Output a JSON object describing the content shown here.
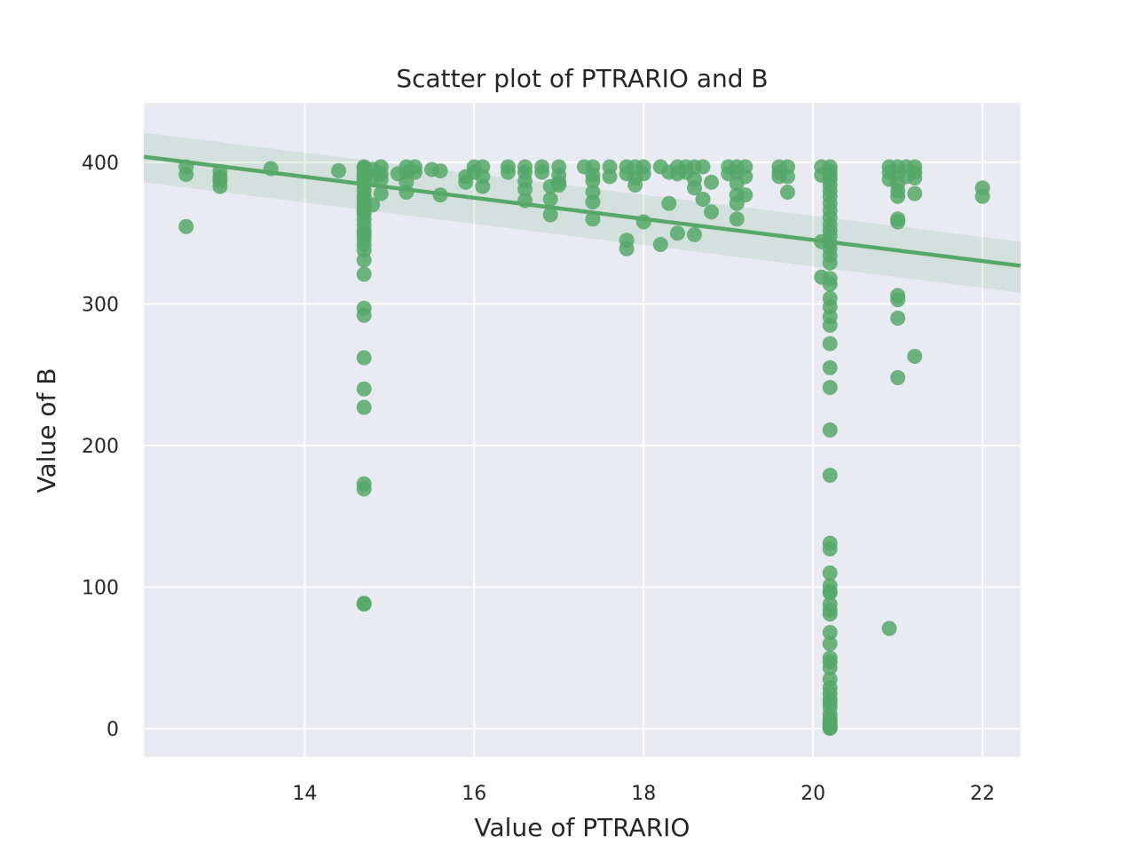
{
  "chart_data": {
    "type": "scatter",
    "title": "Scatter plot of PTRARIO and B",
    "xlabel": "Value of PTRARIO",
    "ylabel": "Value of B",
    "xlim": [
      12.1,
      22.45
    ],
    "ylim": [
      -20,
      442
    ],
    "xticks": [
      14,
      16,
      18,
      20,
      22
    ],
    "yticks": [
      0,
      100,
      200,
      300,
      400
    ],
    "grid": true,
    "background_color": "#eaeaf2",
    "point_color": "#55a868",
    "series": [
      {
        "x": [
          12.6,
          12.6,
          12.6,
          13.0,
          13.0,
          13.0,
          13.0,
          13.6,
          14.4,
          14.7,
          14.7,
          14.7,
          14.7,
          14.7,
          14.7,
          14.7,
          14.7,
          14.7,
          14.7,
          14.7,
          14.7,
          14.7,
          14.7,
          14.7,
          14.7,
          14.7,
          14.7,
          14.7,
          14.7,
          14.7,
          14.7,
          14.7,
          14.7,
          14.7,
          14.7,
          14.7,
          14.7,
          14.7,
          14.7,
          14.7,
          14.7,
          14.7,
          14.8,
          14.8,
          14.8,
          14.9,
          14.9,
          14.9,
          14.9,
          15.1,
          15.2,
          15.2,
          15.2,
          15.2,
          15.3,
          15.3,
          15.5,
          15.6,
          15.6,
          15.9,
          15.9,
          16.0,
          16.0,
          16.1,
          16.1,
          16.1,
          16.4,
          16.4,
          16.6,
          16.6,
          16.6,
          16.6,
          16.6,
          16.8,
          16.8,
          16.9,
          16.9,
          16.9,
          17.0,
          17.0,
          17.0,
          17.0,
          17.3,
          17.4,
          17.4,
          17.4,
          17.4,
          17.4,
          17.4,
          17.6,
          17.6,
          17.8,
          17.8,
          17.8,
          17.8,
          17.9,
          17.9,
          17.9,
          18.0,
          18.0,
          18.0,
          18.2,
          18.2,
          18.3,
          18.3,
          18.4,
          18.4,
          18.4,
          18.5,
          18.5,
          18.6,
          18.6,
          18.6,
          18.6,
          18.7,
          18.7,
          18.8,
          18.8,
          19.0,
          19.0,
          19.1,
          19.1,
          19.1,
          19.1,
          19.1,
          19.1,
          19.2,
          19.2,
          19.2,
          19.6,
          19.6,
          19.6,
          19.7,
          19.7,
          19.7,
          20.1,
          20.1,
          20.1,
          20.1,
          20.2,
          20.2,
          20.2,
          20.2,
          20.2,
          20.2,
          20.2,
          20.2,
          20.2,
          20.2,
          20.2,
          20.2,
          20.2,
          20.2,
          20.2,
          20.2,
          20.2,
          20.2,
          20.2,
          20.2,
          20.2,
          20.2,
          20.2,
          20.2,
          20.2,
          20.2,
          20.2,
          20.2,
          20.2,
          20.2,
          20.2,
          20.2,
          20.2,
          20.2,
          20.2,
          20.2,
          20.2,
          20.2,
          20.2,
          20.2,
          20.2,
          20.2,
          20.2,
          20.2,
          20.2,
          20.2,
          20.2,
          20.2,
          20.2,
          20.2,
          20.2,
          20.2,
          20.2,
          20.2,
          20.2,
          20.2,
          20.9,
          20.9,
          20.9,
          20.9,
          21.0,
          21.0,
          21.0,
          21.0,
          21.0,
          21.0,
          21.0,
          21.0,
          21.0,
          21.0,
          21.0,
          21.1,
          21.1,
          21.2,
          21.2,
          21.2,
          21.2,
          21.2,
          22.0,
          22.0
        ],
        "y": [
          396.9,
          391.5,
          354.7,
          393.5,
          389.6,
          386.9,
          383.0,
          395.6,
          394.1,
          396.9,
          393.0,
          390.6,
          388.0,
          384.0,
          374.0,
          371.0,
          368.0,
          364.0,
          360.0,
          356.0,
          352.0,
          349.0,
          346.0,
          342.0,
          338.0,
          331.0,
          321.0,
          297.0,
          292.0,
          262.0,
          240.0,
          227.0,
          172.9,
          169.3,
          88.6,
          88.0,
          396.0,
          390.0,
          385.0,
          380.0,
          376.0,
          366.0,
          395.0,
          390.0,
          370.0,
          396.9,
          392.0,
          388.0,
          378.0,
          392.0,
          396.9,
          393.0,
          386.0,
          379.0,
          396.9,
          393.0,
          395.0,
          394.0,
          377.0,
          390.0,
          386.0,
          396.9,
          393.0,
          396.9,
          390.0,
          383.0,
          396.9,
          393.0,
          396.9,
          393.0,
          387.0,
          381.0,
          373.0,
          396.9,
          393.0,
          383.0,
          374.0,
          363.0,
          396.9,
          391.0,
          386.0,
          384.0,
          396.9,
          396.9,
          391.0,
          387.0,
          379.0,
          372.0,
          360.0,
          396.9,
          390.0,
          396.9,
          392.0,
          345.0,
          339.0,
          396.9,
          389.0,
          384.0,
          396.9,
          392.0,
          358.0,
          396.9,
          342.0,
          393.0,
          371.0,
          396.9,
          392.0,
          350.0,
          396.9,
          393.0,
          396.9,
          388.0,
          382.0,
          349.0,
          396.9,
          374.0,
          386.0,
          365.0,
          396.9,
          392.0,
          396.9,
          393.0,
          385.0,
          377.0,
          371.0,
          360.0,
          396.9,
          390.0,
          377.0,
          396.9,
          393.0,
          390.0,
          396.9,
          390.0,
          379.0,
          396.9,
          391.0,
          344.0,
          319.0,
          396.9,
          394.0,
          391.0,
          388.0,
          384.0,
          380.0,
          376.0,
          371.0,
          366.0,
          361.0,
          356.0,
          352.0,
          348.0,
          343.0,
          339.0,
          334.0,
          329.0,
          318.0,
          314.0,
          304.0,
          298.0,
          291.0,
          285.0,
          272.0,
          255.0,
          241.0,
          211.0,
          179.0,
          131.0,
          127.0,
          110.0,
          101.0,
          97.0,
          96.0,
          88.0,
          84.0,
          81.0,
          68.0,
          60.0,
          50.0,
          47.0,
          43.0,
          35.0,
          29.0,
          25.0,
          21.0,
          18.0,
          15.0,
          10.0,
          7.0,
          5.0,
          3.0,
          2.5,
          1.5,
          0.5,
          0.3,
          396.9,
          393.0,
          388.0,
          70.8,
          396.9,
          392.0,
          385.0,
          380.0,
          376.0,
          360.0,
          358.0,
          306.0,
          303.0,
          290.0,
          248.0,
          396.9,
          390.0,
          396.9,
          393.0,
          389.0,
          378.0,
          263.0,
          382.0,
          376.0
        ]
      }
    ],
    "regression": {
      "x": [
        12.1,
        22.45
      ],
      "y": [
        404.0,
        327.0
      ],
      "ci_low": [
        386.0,
        308.0
      ],
      "ci_high": [
        421.0,
        344.0
      ]
    }
  }
}
